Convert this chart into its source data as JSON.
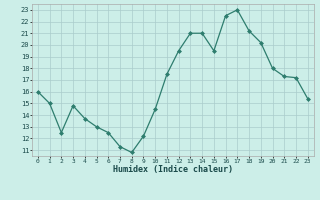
{
  "x": [
    0,
    1,
    2,
    3,
    4,
    5,
    6,
    7,
    8,
    9,
    10,
    11,
    12,
    13,
    14,
    15,
    16,
    17,
    18,
    19,
    20,
    21,
    22,
    23
  ],
  "y": [
    16,
    15,
    12.5,
    14.8,
    13.7,
    13,
    12.5,
    11.3,
    10.8,
    12.2,
    14.5,
    17.5,
    19.5,
    21,
    21,
    19.5,
    22.5,
    23,
    21.2,
    20.2,
    18,
    17.3,
    17.2,
    15.4
  ],
  "line_color": "#2e7d6e",
  "marker": "D",
  "marker_size": 2,
  "bg_color": "#cceee8",
  "grid_color": "#aacccc",
  "xlabel": "Humidex (Indice chaleur)",
  "xlim": [
    -0.5,
    23.5
  ],
  "ylim": [
    10.5,
    23.5
  ],
  "yticks": [
    11,
    12,
    13,
    14,
    15,
    16,
    17,
    18,
    19,
    20,
    21,
    22,
    23
  ],
  "xticks": [
    0,
    1,
    2,
    3,
    4,
    5,
    6,
    7,
    8,
    9,
    10,
    11,
    12,
    13,
    14,
    15,
    16,
    17,
    18,
    19,
    20,
    21,
    22,
    23
  ]
}
